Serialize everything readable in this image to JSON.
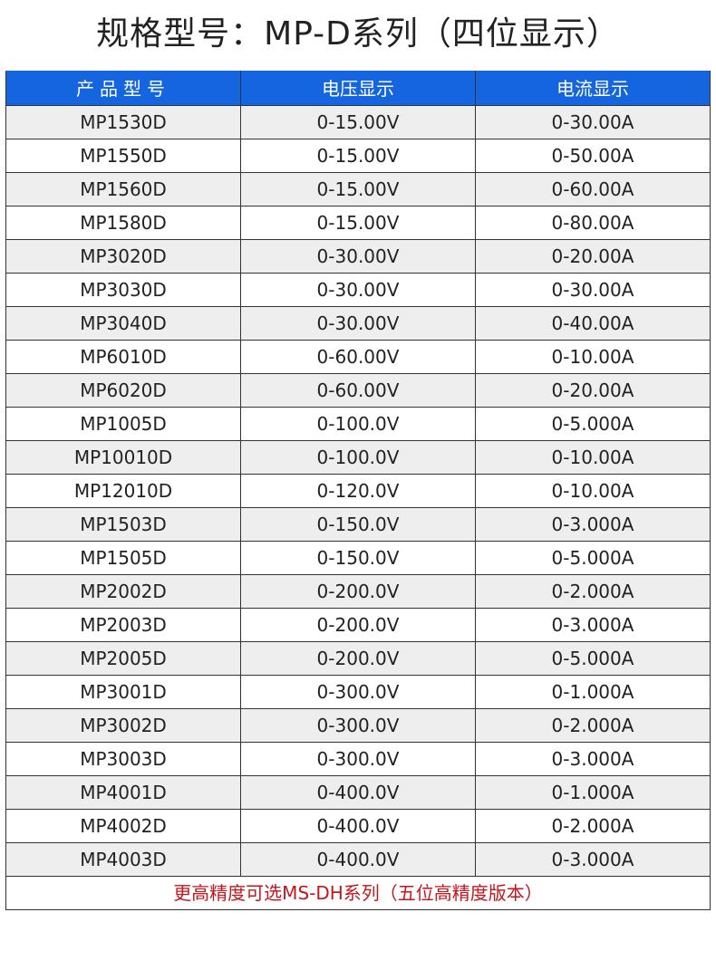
{
  "title": "规格型号：MP-D系列（四位显示）",
  "header_color": "#1565e0",
  "table": {
    "headers": [
      "产品型号",
      "电压显示",
      "电流显示"
    ],
    "rows": [
      [
        "MP1530D",
        "0-15.00V",
        "0-30.00A"
      ],
      [
        "MP1550D",
        "0-15.00V",
        "0-50.00A"
      ],
      [
        "MP1560D",
        "0-15.00V",
        "0-60.00A"
      ],
      [
        "MP1580D",
        "0-15.00V",
        "0-80.00A"
      ],
      [
        "MP3020D",
        "0-30.00V",
        "0-20.00A"
      ],
      [
        "MP3030D",
        "0-30.00V",
        "0-30.00A"
      ],
      [
        "MP3040D",
        "0-30.00V",
        "0-40.00A"
      ],
      [
        "MP6010D",
        "0-60.00V",
        "0-10.00A"
      ],
      [
        "MP6020D",
        "0-60.00V",
        "0-20.00A"
      ],
      [
        "MP1005D",
        "0-100.0V",
        "0-5.000A"
      ],
      [
        "MP10010D",
        "0-100.0V",
        "0-10.00A"
      ],
      [
        "MP12010D",
        "0-120.0V",
        "0-10.00A"
      ],
      [
        "MP1503D",
        "0-150.0V",
        "0-3.000A"
      ],
      [
        "MP1505D",
        "0-150.0V",
        "0-5.000A"
      ],
      [
        "MP2002D",
        "0-200.0V",
        "0-2.000A"
      ],
      [
        "MP2003D",
        "0-200.0V",
        "0-3.000A"
      ],
      [
        "MP2005D",
        "0-200.0V",
        "0-5.000A"
      ],
      [
        "MP3001D",
        "0-300.0V",
        "0-1.000A"
      ],
      [
        "MP3002D",
        "0-300.0V",
        "0-2.000A"
      ],
      [
        "MP3003D",
        "0-300.0V",
        "0-3.000A"
      ],
      [
        "MP4001D",
        "0-400.0V",
        "0-1.000A"
      ],
      [
        "MP4002D",
        "0-400.0V",
        "0-2.000A"
      ],
      [
        "MP4003D",
        "0-400.0V",
        "0-3.000A"
      ]
    ],
    "footer": "更高精度可选MS-DH系列（五位高精度版本）",
    "footer_color": "#c4161c"
  }
}
